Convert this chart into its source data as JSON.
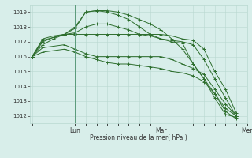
{
  "bg_color": "#d8eeea",
  "plot_bg_color": "#d8eeea",
  "grid_color": "#b8d8d0",
  "line_color": "#2d6e2d",
  "title": "Pression niveau de la mer( hPa )",
  "xtick_labels": [
    "",
    "Lun",
    "",
    "Mar",
    "",
    "Mer"
  ],
  "xtick_positions": [
    0,
    24,
    48,
    72,
    96,
    120
  ],
  "ylim": [
    1011.5,
    1019.5
  ],
  "yticks": [
    1012,
    1013,
    1014,
    1015,
    1016,
    1017,
    1018,
    1019
  ],
  "series": [
    [
      1016.0,
      1017.1,
      1017.3,
      1017.5,
      1017.9,
      1019.0,
      1019.1,
      1019.1,
      1019.0,
      1018.8,
      1018.5,
      1018.2,
      1017.8,
      1017.2,
      1016.5,
      1015.5,
      1014.5,
      1013.5,
      1012.3,
      1011.8
    ],
    [
      1016.0,
      1017.2,
      1017.4,
      1017.5,
      1018.0,
      1019.0,
      1019.1,
      1019.0,
      1018.8,
      1018.5,
      1018.0,
      1017.5,
      1017.2,
      1017.0,
      1016.9,
      1015.5,
      1014.5,
      1013.2,
      1012.1,
      1011.9
    ],
    [
      1016.0,
      1017.0,
      1017.3,
      1017.5,
      1017.6,
      1018.0,
      1018.2,
      1018.2,
      1018.0,
      1017.8,
      1017.5,
      1017.4,
      1017.2,
      1017.1,
      1017.0,
      1016.8,
      1015.8,
      1014.5,
      1013.2,
      1012.0
    ],
    [
      1016.0,
      1016.8,
      1017.2,
      1017.5,
      1017.5,
      1017.5,
      1017.5,
      1017.5,
      1017.5,
      1017.5,
      1017.5,
      1017.5,
      1017.5,
      1017.4,
      1017.2,
      1017.1,
      1016.5,
      1015.0,
      1013.8,
      1012.2
    ],
    [
      1016.0,
      1016.6,
      1016.7,
      1016.8,
      1016.5,
      1016.2,
      1016.0,
      1016.0,
      1016.0,
      1016.0,
      1016.0,
      1016.0,
      1016.0,
      1015.8,
      1015.5,
      1015.2,
      1014.8,
      1013.8,
      1012.8,
      1012.0
    ],
    [
      1016.0,
      1016.3,
      1016.4,
      1016.5,
      1016.3,
      1016.0,
      1015.8,
      1015.6,
      1015.5,
      1015.5,
      1015.4,
      1015.3,
      1015.2,
      1015.0,
      1014.9,
      1014.7,
      1014.3,
      1013.5,
      1012.5,
      1012.0
    ]
  ],
  "x_step": 6,
  "n_points": 20,
  "figwidth": 3.2,
  "figheight": 2.0,
  "dpi": 100
}
